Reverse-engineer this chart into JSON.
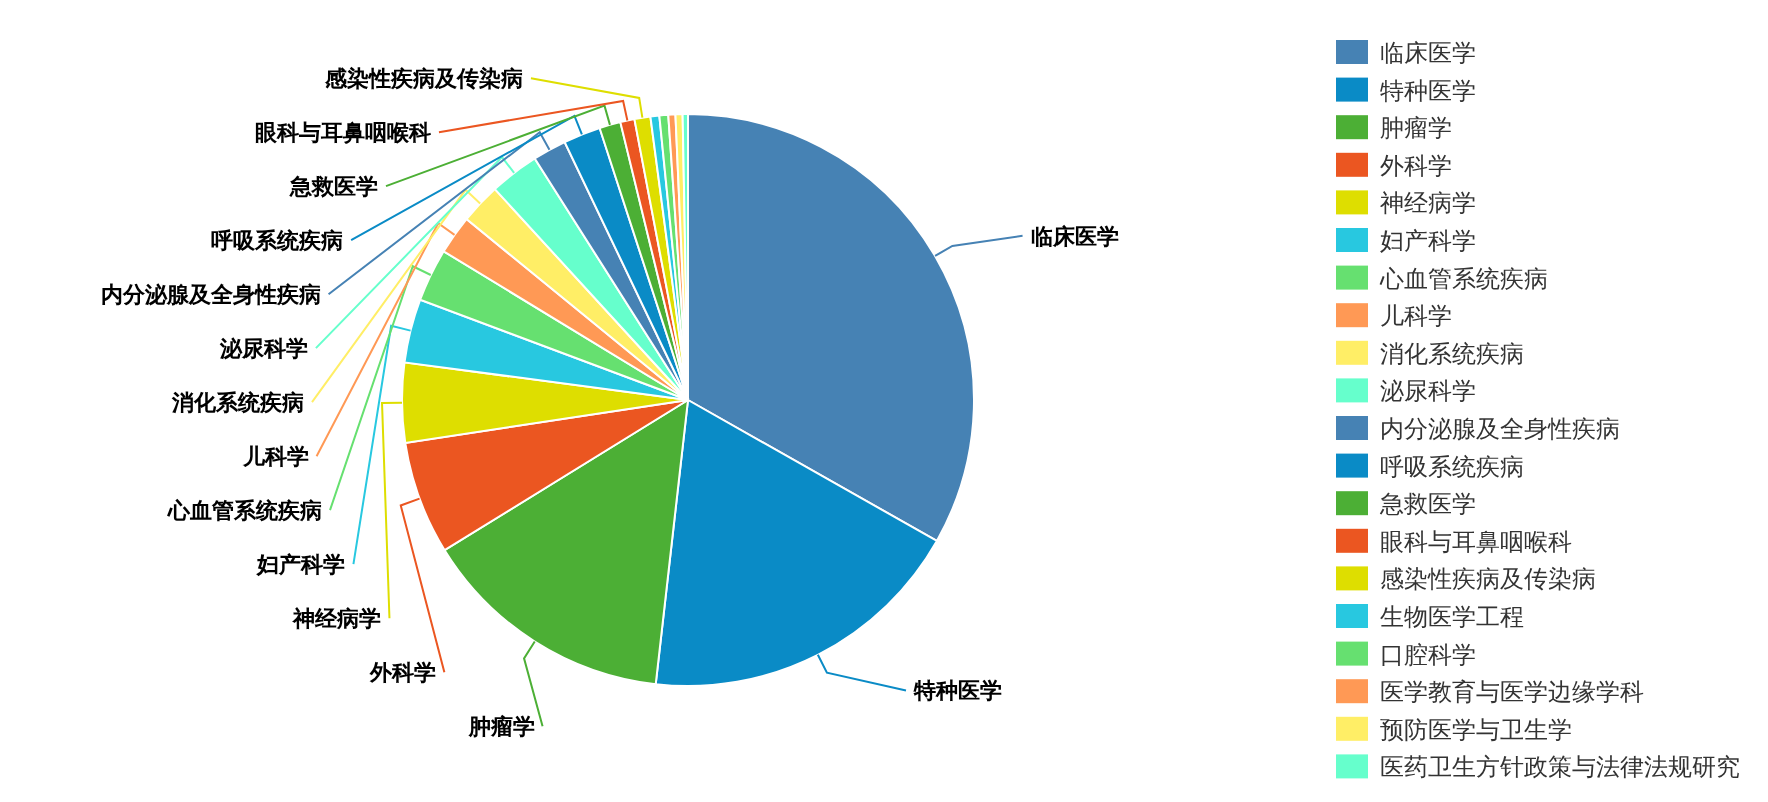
{
  "chart_data": {
    "type": "pie",
    "legend": "right",
    "categories": [
      "临床医学",
      "特种医学",
      "肿瘤学",
      "外科学",
      "神经病学",
      "妇产科学",
      "心血管系统疾病",
      "儿科学",
      "消化系统疾病",
      "泌尿科学",
      "内分泌腺及全身性疾病",
      "呼吸系统疾病",
      "急救医学",
      "眼科与耳鼻咽喉科",
      "感染性疾病及传染病",
      "生物医学工程",
      "口腔科学",
      "医学教育与医学边缘学科",
      "预防医学与卫生学",
      "医药卫生方针政策与法律法规研究"
    ],
    "values": [
      33.2,
      18.6,
      14.4,
      6.4,
      4.5,
      3.6,
      3.0,
      2.2,
      2.3,
      2.8,
      1.9,
      2.1,
      1.2,
      0.8,
      0.9,
      0.5,
      0.5,
      0.4,
      0.4,
      0.3
    ],
    "colors": [
      "#4682b4",
      "#0a8bc6",
      "#4caf35",
      "#eb5621",
      "#dede00",
      "#28c8e0",
      "#66e070",
      "#ff9955",
      "#ffee66",
      "#66ffcc",
      "#4682b4",
      "#0a8bc6",
      "#4caf35",
      "#eb5621",
      "#dede00",
      "#28c8e0",
      "#66e070",
      "#ff9955",
      "#ffee66",
      "#66ffcc"
    ]
  }
}
